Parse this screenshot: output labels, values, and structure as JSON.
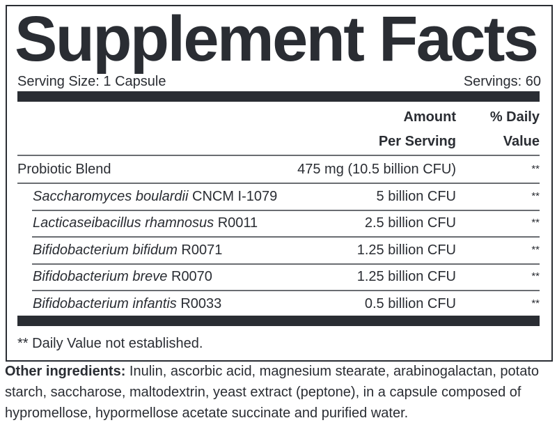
{
  "title": "Supplement Facts",
  "serving_size": "Serving Size: 1 Capsule",
  "servings": "Servings: 60",
  "header": {
    "amount_1": "Amount",
    "amount_2": "Per Serving",
    "dv_1": "% Daily",
    "dv_2": "Value"
  },
  "rows": [
    {
      "name_italic": "",
      "name": "Probiotic Blend",
      "amount": "475 mg (10.5 billion CFU)",
      "dv": "**"
    },
    {
      "name_italic": "Saccharomyces boulardii",
      "name": " CNCM I-1079",
      "amount": "5 billion CFU",
      "dv": "**"
    },
    {
      "name_italic": "Lacticaseibacillus rhamnosus",
      "name": " R0011",
      "amount": "2.5 billion CFU",
      "dv": "**"
    },
    {
      "name_italic": "Bifidobacterium bifidum",
      "name": " R0071",
      "amount": "1.25 billion CFU",
      "dv": "**"
    },
    {
      "name_italic": "Bifidobacterium breve",
      "name": " R0070",
      "amount": "1.25 billion CFU",
      "dv": "**"
    },
    {
      "name_italic": "Bifidobacterium infantis",
      "name": " R0033",
      "amount": "0.5 billion CFU",
      "dv": "**"
    }
  ],
  "footnote": "** Daily Value not established.",
  "other_label": "Other ingredients:",
  "other_text": " Inulin, ascorbic acid, magnesium stearate, arabinogalactan, potato starch, saccharose, maltodextrin, yeast extract (peptone), in a capsule composed of hypromellose, hypormellose acetate succinate and purified water."
}
